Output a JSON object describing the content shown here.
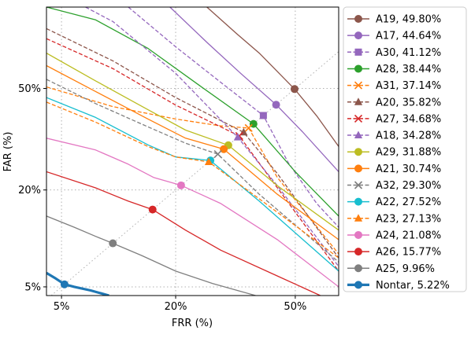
{
  "chart_data": {
    "type": "line",
    "xlabel": "FRR (%)",
    "ylabel": "FAR (%)",
    "x_scale": "probit",
    "y_scale": "probit",
    "xlim": [
      4.0,
      62.0
    ],
    "ylim": [
      4.3,
      75.0
    ],
    "x_ticks": [
      {
        "value": 5,
        "label": "5%"
      },
      {
        "value": 20,
        "label": "20%"
      },
      {
        "value": 50,
        "label": "50%"
      }
    ],
    "y_ticks": [
      {
        "value": 5,
        "label": "5%"
      },
      {
        "value": 20,
        "label": "20%"
      },
      {
        "value": 50,
        "label": "50%"
      }
    ],
    "grid": "dotted at ticks",
    "diagonal": "EER line (x = y), dotted",
    "legend_position": "outside right",
    "series": [
      {
        "name": "A19, 49.80%",
        "eer": 49.8,
        "color": "#8c564b",
        "dash": "solid",
        "marker": "circle",
        "x": [
          26.7,
          34.0,
          40.0,
          49.8,
          56.0,
          62.0
        ],
        "y": [
          75.0,
          67.5,
          61.5,
          49.8,
          41.0,
          31.5
        ]
      },
      {
        "name": "A17, 44.64%",
        "eer": 44.64,
        "color": "#9467bd",
        "dash": "solid",
        "marker": "circle",
        "x": [
          18.9,
          27.0,
          35.0,
          44.64,
          52.0,
          62.0
        ],
        "y": [
          75.0,
          64.5,
          55.0,
          44.64,
          36.0,
          24.5
        ]
      },
      {
        "name": "A30, 41.12%",
        "eer": 41.12,
        "color": "#9467bd",
        "dash": "dashed",
        "marker": "square",
        "x": [
          12.0,
          20.0,
          30.0,
          41.12,
          48.0,
          56.0,
          62.0
        ],
        "y": [
          75.0,
          63.5,
          52.0,
          41.12,
          27.0,
          17.0,
          12.5
        ]
      },
      {
        "name": "A28, 38.44%",
        "eer": 38.44,
        "color": "#2ca02c",
        "dash": "solid",
        "marker": "circle",
        "x": [
          4.0,
          8.0,
          15.0,
          25.0,
          38.44,
          50.0,
          62.0
        ],
        "y": [
          75.0,
          71.5,
          63.0,
          51.0,
          38.44,
          24.5,
          14.5
        ]
      },
      {
        "name": "A31, 37.14%",
        "eer": 37.14,
        "color": "#ff7f0e",
        "dash": "dashed",
        "marker": "x",
        "x": [
          4.0,
          10.0,
          20.0,
          30.0,
          37.14,
          45.0,
          62.0
        ],
        "y": [
          50.5,
          44.0,
          40.0,
          37.8,
          37.14,
          23.0,
          8.5
        ]
      },
      {
        "name": "A20, 35.82%",
        "eer": 35.82,
        "color": "#8c564b",
        "dash": "dashed",
        "marker": "triangle",
        "x": [
          4.0,
          10.0,
          20.0,
          30.0,
          35.82,
          45.0,
          62.0
        ],
        "y": [
          69.0,
          59.0,
          47.0,
          39.5,
          35.82,
          24.0,
          8.0
        ]
      },
      {
        "name": "A27, 34.68%",
        "eer": 34.68,
        "color": "#d62728",
        "dash": "dashed",
        "marker": "x",
        "x": [
          4.0,
          10.0,
          20.0,
          30.0,
          34.68,
          45.0,
          62.0
        ],
        "y": [
          66.0,
          56.5,
          44.5,
          37.5,
          34.68,
          20.5,
          6.5
        ]
      },
      {
        "name": "A18, 34.28%",
        "eer": 34.28,
        "color": "#9467bd",
        "dash": "dashed",
        "marker": "triangle",
        "x": [
          7.0,
          10.0,
          20.0,
          34.28,
          45.0,
          62.0
        ],
        "y": [
          75.0,
          71.0,
          55.0,
          34.28,
          21.0,
          7.0
        ]
      },
      {
        "name": "A29, 31.88%",
        "eer": 31.88,
        "color": "#bcbd22",
        "dash": "solid",
        "marker": "circle",
        "x": [
          4.0,
          8.0,
          15.0,
          22.0,
          31.88,
          45.0,
          62.0
        ],
        "y": [
          61.5,
          52.5,
          43.0,
          36.5,
          31.88,
          21.0,
          12.0
        ]
      },
      {
        "name": "A21, 30.74%",
        "eer": 30.74,
        "color": "#ff7f0e",
        "dash": "solid",
        "marker": "circle",
        "x": [
          4.0,
          8.0,
          15.0,
          22.0,
          30.74,
          45.0,
          62.0
        ],
        "y": [
          57.5,
          49.0,
          40.0,
          34.0,
          30.74,
          19.0,
          10.5
        ]
      },
      {
        "name": "A32, 29.30%",
        "eer": 29.3,
        "color": "#7f7f7f",
        "dash": "dashed",
        "marker": "x",
        "x": [
          4.0,
          8.0,
          15.0,
          22.0,
          29.3,
          40.0,
          62.0
        ],
        "y": [
          53.0,
          45.0,
          37.5,
          32.5,
          29.3,
          19.0,
          7.5
        ]
      },
      {
        "name": "A22, 27.52%",
        "eer": 27.52,
        "color": "#17becf",
        "dash": "solid",
        "marker": "circle",
        "x": [
          4.0,
          8.0,
          15.0,
          20.0,
          27.52,
          40.0,
          62.0
        ],
        "y": [
          47.0,
          40.5,
          32.0,
          28.5,
          27.52,
          17.5,
          6.5
        ]
      },
      {
        "name": "A23, 27.13%",
        "eer": 27.13,
        "color": "#ff7f0e",
        "dash": "dashed",
        "marker": "triangle",
        "x": [
          4.0,
          8.0,
          15.0,
          20.0,
          27.13,
          40.0,
          62.0
        ],
        "y": [
          45.5,
          39.0,
          31.5,
          28.5,
          27.13,
          18.0,
          8.0
        ]
      },
      {
        "name": "A24, 21.08%",
        "eer": 21.08,
        "color": "#e377c2",
        "dash": "solid",
        "marker": "circle",
        "x": [
          4.0,
          8.0,
          12.0,
          16.0,
          21.08,
          30.0,
          45.0,
          62.0
        ],
        "y": [
          34.0,
          30.5,
          26.5,
          23.0,
          21.08,
          17.0,
          10.5,
          5.0
        ]
      },
      {
        "name": "A26, 15.77%",
        "eer": 15.77,
        "color": "#d62728",
        "dash": "solid",
        "marker": "circle",
        "x": [
          4.0,
          8.0,
          12.0,
          15.77,
          22.0,
          30.0,
          45.0,
          57.0
        ],
        "y": [
          24.5,
          20.5,
          17.5,
          15.77,
          12.0,
          9.0,
          6.0,
          4.3
        ]
      },
      {
        "name": "A25, 9.96%",
        "eer": 9.96,
        "color": "#7f7f7f",
        "dash": "solid",
        "marker": "circle",
        "x": [
          4.0,
          6.0,
          8.0,
          9.96,
          14.0,
          20.0,
          28.0,
          39.0
        ],
        "y": [
          14.5,
          12.5,
          11.0,
          9.96,
          8.3,
          6.5,
          5.3,
          4.3
        ]
      },
      {
        "name": "Nontar, 5.22%",
        "eer": 5.22,
        "color": "#1f77b4",
        "dash": "solid",
        "marker": "circle",
        "width": 3.2,
        "x": [
          4.0,
          4.6,
          5.22,
          6.0,
          7.5,
          9.5
        ],
        "y": [
          6.3,
          5.75,
          5.22,
          5.0,
          4.7,
          4.3
        ]
      }
    ]
  }
}
